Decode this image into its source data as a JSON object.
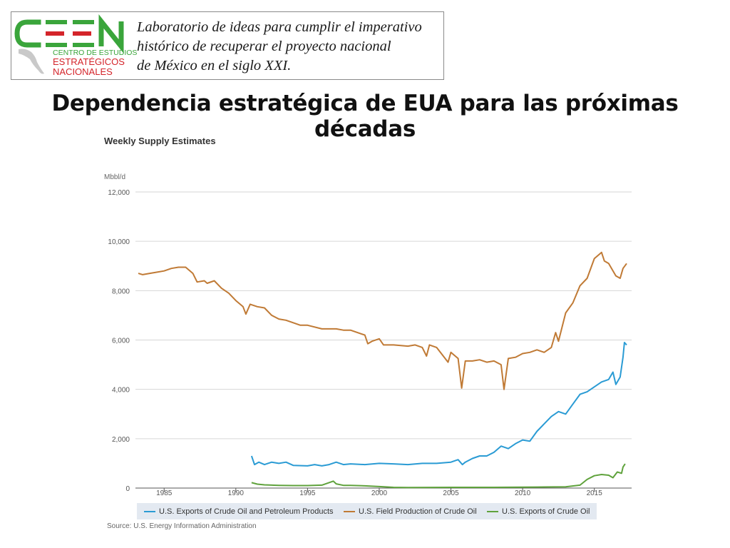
{
  "header": {
    "logo": {
      "letters": "CEEN",
      "line1": "CENTRO DE ESTUDIOS",
      "line2": "ESTRATÉGICOS",
      "line3": "NACIONALES"
    },
    "tagline": [
      "Laboratorio de ideas para cumplir el imperativo",
      "histórico de recuperar el proyecto nacional",
      "de México en el siglo XXI."
    ]
  },
  "slide_title": "Dependencia estratégica de EUA para las próximas décadas",
  "colors": {
    "exports_total": "#2a9bd4",
    "field_production": "#c07a35",
    "exports_crude": "#5fa23c",
    "logo_green": "#3aa53b",
    "logo_red": "#d4242a"
  },
  "chart_data": {
    "type": "line",
    "title": "Weekly Supply Estimates",
    "ylabel": "Mbbl/d",
    "ylim": [
      0,
      12000
    ],
    "xlim": [
      1983,
      2017.6
    ],
    "x_ticks": [
      1985,
      1990,
      1995,
      2000,
      2005,
      2010,
      2015
    ],
    "y_ticks": [
      0,
      2000,
      4000,
      6000,
      8000,
      10000,
      12000
    ],
    "tick_labels": {
      "x": [
        "1985",
        "1990",
        "1995",
        "2000",
        "2005",
        "2010",
        "2015"
      ],
      "y": [
        "0",
        "2,000",
        "4,000",
        "6,000",
        "8,000",
        "10,000",
        "12,000"
      ]
    },
    "grid": true,
    "legend_position": "bottom",
    "source": "Source: U.S. Energy Information Administration",
    "series": [
      {
        "name": "U.S. Exports of Crude Oil and Petroleum Products",
        "color": "#2a9bd4",
        "points": [
          [
            1991.1,
            1300
          ],
          [
            1991.3,
            950
          ],
          [
            1991.6,
            1050
          ],
          [
            1992,
            950
          ],
          [
            1992.5,
            1050
          ],
          [
            1993,
            1000
          ],
          [
            1993.5,
            1050
          ],
          [
            1994,
            920
          ],
          [
            1995,
            900
          ],
          [
            1995.5,
            950
          ],
          [
            1996,
            900
          ],
          [
            1996.5,
            950
          ],
          [
            1997,
            1050
          ],
          [
            1997.5,
            950
          ],
          [
            1998,
            980
          ],
          [
            1999,
            950
          ],
          [
            2000,
            1000
          ],
          [
            2001,
            980
          ],
          [
            2002,
            950
          ],
          [
            2003,
            1000
          ],
          [
            2004,
            1000
          ],
          [
            2005,
            1050
          ],
          [
            2005.5,
            1150
          ],
          [
            2005.8,
            950
          ],
          [
            2006,
            1050
          ],
          [
            2006.5,
            1200
          ],
          [
            2007,
            1300
          ],
          [
            2007.5,
            1300
          ],
          [
            2008,
            1450
          ],
          [
            2008.5,
            1700
          ],
          [
            2009,
            1600
          ],
          [
            2009.5,
            1800
          ],
          [
            2010,
            1950
          ],
          [
            2010.5,
            1900
          ],
          [
            2011,
            2300
          ],
          [
            2011.5,
            2600
          ],
          [
            2012,
            2900
          ],
          [
            2012.5,
            3100
          ],
          [
            2013,
            3000
          ],
          [
            2013.5,
            3400
          ],
          [
            2014,
            3800
          ],
          [
            2014.5,
            3900
          ],
          [
            2015,
            4100
          ],
          [
            2015.5,
            4300
          ],
          [
            2016,
            4400
          ],
          [
            2016.3,
            4700
          ],
          [
            2016.5,
            4200
          ],
          [
            2016.8,
            4500
          ],
          [
            2017,
            5300
          ],
          [
            2017.1,
            5900
          ],
          [
            2017.25,
            5800
          ]
        ]
      },
      {
        "name": "U.S. Field Production of Crude Oil",
        "color": "#c07a35",
        "points": [
          [
            1983.2,
            8700
          ],
          [
            1983.5,
            8650
          ],
          [
            1984,
            8700
          ],
          [
            1985,
            8800
          ],
          [
            1985.5,
            8900
          ],
          [
            1986,
            8950
          ],
          [
            1986.5,
            8950
          ],
          [
            1987,
            8700
          ],
          [
            1987.3,
            8350
          ],
          [
            1987.8,
            8400
          ],
          [
            1988,
            8300
          ],
          [
            1988.5,
            8400
          ],
          [
            1989,
            8100
          ],
          [
            1989.5,
            7900
          ],
          [
            1990,
            7600
          ],
          [
            1990.5,
            7350
          ],
          [
            1990.7,
            7050
          ],
          [
            1991,
            7450
          ],
          [
            1991.5,
            7350
          ],
          [
            1992,
            7300
          ],
          [
            1992.5,
            7000
          ],
          [
            1993,
            6850
          ],
          [
            1993.5,
            6800
          ],
          [
            1994,
            6700
          ],
          [
            1994.5,
            6600
          ],
          [
            1995,
            6600
          ],
          [
            1996,
            6450
          ],
          [
            1996.5,
            6450
          ],
          [
            1997,
            6450
          ],
          [
            1997.5,
            6400
          ],
          [
            1998,
            6400
          ],
          [
            1999,
            6200
          ],
          [
            1999.2,
            5850
          ],
          [
            1999.5,
            5950
          ],
          [
            2000,
            6050
          ],
          [
            2000.3,
            5800
          ],
          [
            2001,
            5800
          ],
          [
            2002,
            5750
          ],
          [
            2002.5,
            5800
          ],
          [
            2003,
            5700
          ],
          [
            2003.3,
            5350
          ],
          [
            2003.5,
            5800
          ],
          [
            2004,
            5700
          ],
          [
            2004.8,
            5100
          ],
          [
            2005,
            5500
          ],
          [
            2005.5,
            5250
          ],
          [
            2005.75,
            4050
          ],
          [
            2006,
            5150
          ],
          [
            2006.5,
            5150
          ],
          [
            2007,
            5200
          ],
          [
            2007.5,
            5100
          ],
          [
            2008,
            5150
          ],
          [
            2008.5,
            5000
          ],
          [
            2008.7,
            4000
          ],
          [
            2009,
            5250
          ],
          [
            2009.5,
            5300
          ],
          [
            2010,
            5450
          ],
          [
            2010.5,
            5500
          ],
          [
            2011,
            5600
          ],
          [
            2011.5,
            5500
          ],
          [
            2012,
            5700
          ],
          [
            2012.3,
            6300
          ],
          [
            2012.5,
            5950
          ],
          [
            2013,
            7100
          ],
          [
            2013.5,
            7500
          ],
          [
            2014,
            8200
          ],
          [
            2014.5,
            8500
          ],
          [
            2015,
            9300
          ],
          [
            2015.5,
            9550
          ],
          [
            2015.7,
            9200
          ],
          [
            2016,
            9100
          ],
          [
            2016.5,
            8600
          ],
          [
            2016.8,
            8500
          ],
          [
            2017,
            8900
          ],
          [
            2017.25,
            9100
          ]
        ]
      },
      {
        "name": "U.S. Exports of Crude Oil",
        "color": "#5fa23c",
        "points": [
          [
            1991.1,
            220
          ],
          [
            1991.5,
            160
          ],
          [
            1992,
            130
          ],
          [
            1993,
            110
          ],
          [
            1994,
            100
          ],
          [
            1995,
            100
          ],
          [
            1996,
            120
          ],
          [
            1996.8,
            280
          ],
          [
            1997,
            170
          ],
          [
            1997.5,
            110
          ],
          [
            1998,
            110
          ],
          [
            1999,
            90
          ],
          [
            2000,
            60
          ],
          [
            2001,
            30
          ],
          [
            2002,
            20
          ],
          [
            2005,
            30
          ],
          [
            2008,
            30
          ],
          [
            2011,
            40
          ],
          [
            2013,
            50
          ],
          [
            2014,
            120
          ],
          [
            2014.5,
            350
          ],
          [
            2015,
            500
          ],
          [
            2015.5,
            550
          ],
          [
            2016,
            520
          ],
          [
            2016.3,
            420
          ],
          [
            2016.6,
            650
          ],
          [
            2016.9,
            600
          ],
          [
            2017,
            850
          ],
          [
            2017.15,
            980
          ]
        ]
      }
    ]
  }
}
